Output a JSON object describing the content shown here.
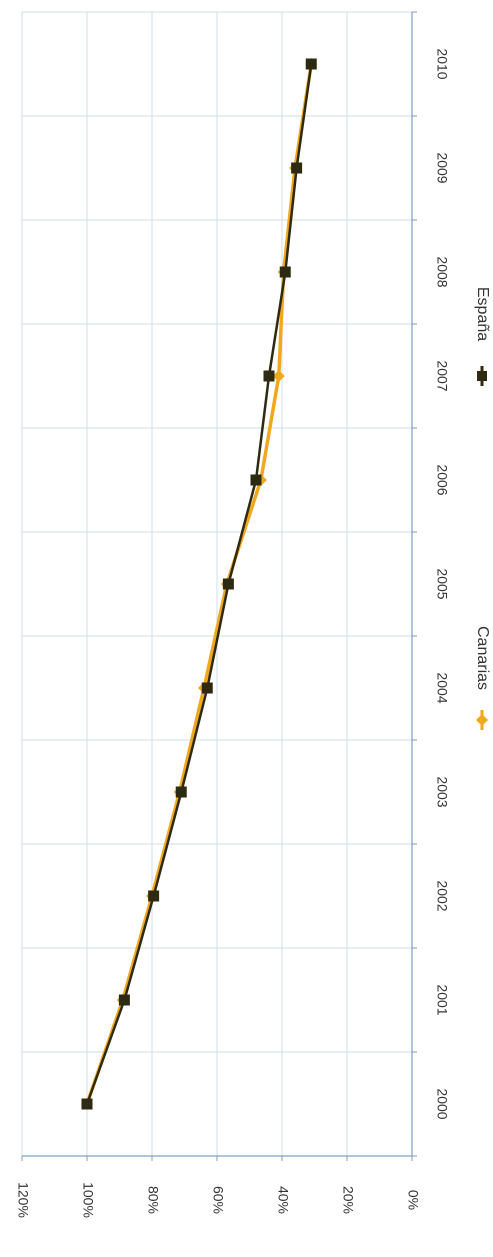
{
  "chart_data": {
    "type": "line",
    "x": [
      "2000",
      "2001",
      "2002",
      "2003",
      "2004",
      "2005",
      "2006",
      "2007",
      "2008",
      "2009",
      "2010"
    ],
    "y_ticks": [
      "0%",
      "20%",
      "40%",
      "60%",
      "80%",
      "100%",
      "120%"
    ],
    "ylim": [
      0,
      120
    ],
    "grid": true,
    "legend_position": "bottom",
    "series": [
      {
        "name": "Canarias",
        "color": "#F2A81D",
        "values": [
          100,
          89,
          80,
          71.5,
          64,
          57,
          46.5,
          41,
          39.5,
          36,
          31
        ]
      },
      {
        "name": "España",
        "color": "#2E2A12",
        "values": [
          100,
          88.5,
          79.5,
          71,
          63,
          56.5,
          48,
          44,
          39,
          35.5,
          31
        ]
      }
    ]
  }
}
